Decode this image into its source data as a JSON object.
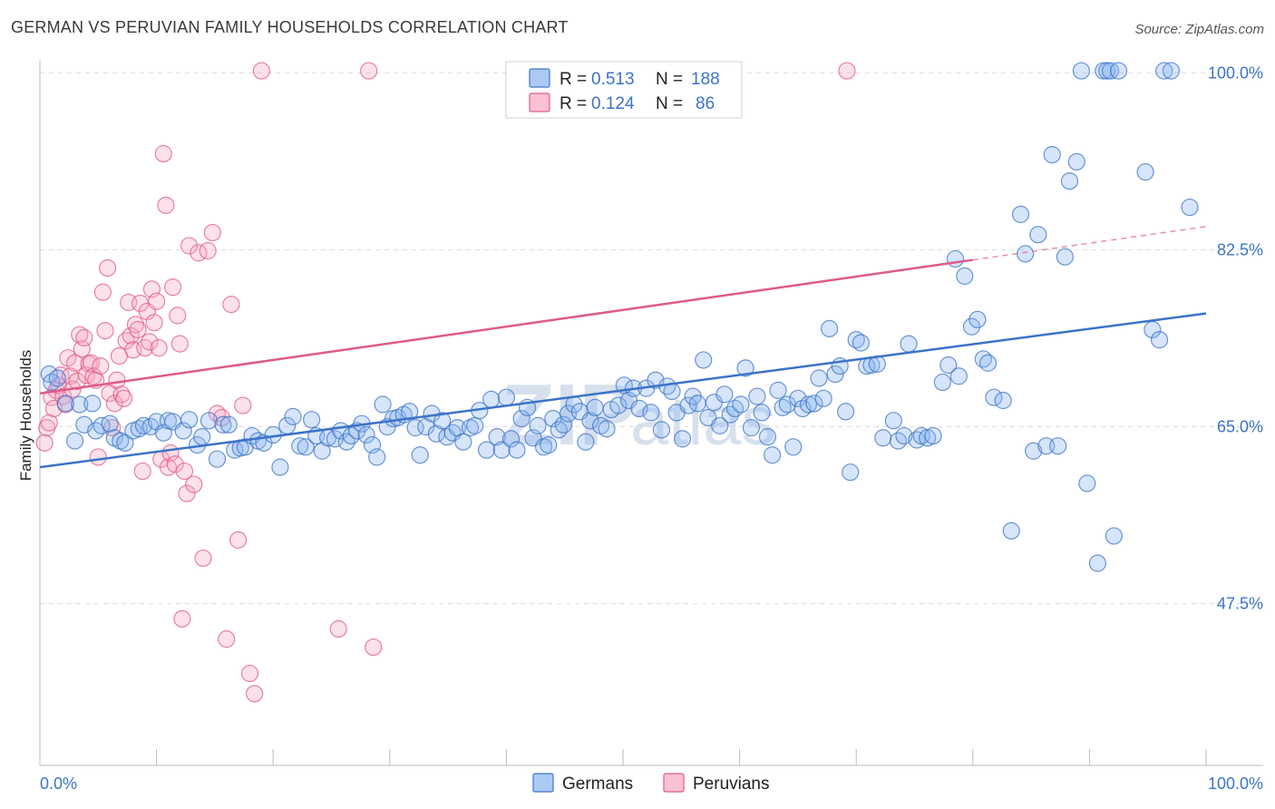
{
  "header": {
    "title": "GERMAN VS PERUVIAN FAMILY HOUSEHOLDS CORRELATION CHART",
    "source": "Source: ZipAtlas.com"
  },
  "watermark": {
    "zip": "ZIP",
    "atlas": "atlas"
  },
  "legend_top": {
    "rows": [
      {
        "r_label": "R =",
        "r_value": "0.513",
        "n_label": "N =",
        "n_value": "188",
        "color": "#8ab4f0"
      },
      {
        "r_label": "R =",
        "r_value": "0.124",
        "n_label": "N =",
        "n_value": "86",
        "color": "#f5a8c0"
      }
    ]
  },
  "legend_bottom": {
    "items": [
      {
        "label": "Germans",
        "color": "#8ab4f0"
      },
      {
        "label": "Peruvians",
        "color": "#f5a8c0"
      }
    ]
  },
  "chart_data": {
    "type": "scatter",
    "title": "GERMAN VS PERUVIAN FAMILY HOUSEHOLDS CORRELATION CHART",
    "xlabel": "",
    "ylabel": "Family Households",
    "xlim": [
      0,
      100
    ],
    "ylim": [
      31.5,
      102
    ],
    "x_tick_labels": [
      "0.0%",
      "100.0%"
    ],
    "y_ticks": [
      {
        "value": 100.0,
        "label": "100.0%"
      },
      {
        "value": 82.5,
        "label": "82.5%"
      },
      {
        "value": 65.0,
        "label": "65.0%"
      },
      {
        "value": 47.5,
        "label": "47.5%"
      }
    ],
    "grid": "horizontal dashed",
    "legend_placement": "top-center",
    "colors": {
      "germans": "#3b73c8",
      "peruvians": "#e05a8a",
      "germans_fill": "#8ab4f0",
      "peruvians_fill": "#f5a8c0"
    },
    "series": [
      {
        "name": "Germans",
        "trend": {
          "x": [
            0,
            100
          ],
          "y": [
            61.0,
            76.2
          ]
        },
        "points": [
          [
            0.8,
            70.2
          ],
          [
            1.0,
            69.4
          ],
          [
            1.5,
            69.8
          ],
          [
            2.2,
            67.3
          ],
          [
            3.0,
            63.6
          ],
          [
            3.4,
            67.2
          ],
          [
            3.8,
            65.2
          ],
          [
            4.5,
            67.3
          ],
          [
            4.8,
            64.6
          ],
          [
            5.3,
            65.1
          ],
          [
            6.0,
            65.3
          ],
          [
            6.4,
            63.9
          ],
          [
            6.9,
            63.6
          ],
          [
            7.3,
            63.4
          ],
          [
            8.0,
            64.6
          ],
          [
            8.5,
            64.8
          ],
          [
            8.9,
            65.1
          ],
          [
            9.5,
            65.0
          ],
          [
            10.0,
            65.5
          ],
          [
            10.6,
            64.4
          ],
          [
            11.0,
            65.6
          ],
          [
            11.4,
            65.5
          ],
          [
            12.3,
            64.6
          ],
          [
            12.8,
            65.7
          ],
          [
            13.5,
            63.2
          ],
          [
            13.9,
            64.0
          ],
          [
            14.5,
            65.6
          ],
          [
            15.2,
            61.8
          ],
          [
            15.7,
            65.2
          ],
          [
            16.2,
            65.2
          ],
          [
            16.7,
            62.7
          ],
          [
            17.2,
            62.9
          ],
          [
            17.6,
            63.0
          ],
          [
            18.2,
            64.1
          ],
          [
            18.7,
            63.6
          ],
          [
            19.2,
            63.4
          ],
          [
            20.0,
            64.2
          ],
          [
            20.6,
            61.0
          ],
          [
            21.2,
            65.1
          ],
          [
            21.7,
            66.0
          ],
          [
            22.3,
            63.1
          ],
          [
            22.8,
            63.0
          ],
          [
            23.3,
            65.7
          ],
          [
            23.7,
            64.1
          ],
          [
            24.2,
            62.6
          ],
          [
            24.7,
            63.9
          ],
          [
            25.3,
            63.8
          ],
          [
            25.8,
            64.6
          ],
          [
            26.3,
            63.5
          ],
          [
            26.7,
            64.1
          ],
          [
            27.2,
            64.6
          ],
          [
            27.6,
            65.3
          ],
          [
            28.0,
            64.2
          ],
          [
            28.5,
            63.2
          ],
          [
            28.9,
            62.0
          ],
          [
            29.4,
            67.2
          ],
          [
            29.8,
            65.0
          ],
          [
            30.3,
            65.8
          ],
          [
            30.7,
            65.9
          ],
          [
            31.2,
            66.2
          ],
          [
            31.7,
            66.5
          ],
          [
            32.2,
            64.9
          ],
          [
            32.6,
            62.2
          ],
          [
            33.1,
            65.0
          ],
          [
            33.6,
            66.3
          ],
          [
            34.0,
            64.3
          ],
          [
            34.5,
            65.6
          ],
          [
            34.9,
            64.0
          ],
          [
            35.4,
            64.4
          ],
          [
            35.8,
            64.9
          ],
          [
            36.3,
            63.5
          ],
          [
            36.9,
            64.9
          ],
          [
            37.3,
            65.1
          ],
          [
            37.7,
            66.6
          ],
          [
            38.3,
            62.7
          ],
          [
            38.7,
            67.7
          ],
          [
            39.2,
            64.0
          ],
          [
            39.6,
            62.7
          ],
          [
            40.0,
            67.9
          ],
          [
            40.4,
            63.8
          ],
          [
            40.9,
            62.7
          ],
          [
            41.3,
            65.8
          ],
          [
            41.8,
            66.9
          ],
          [
            42.3,
            63.9
          ],
          [
            42.7,
            65.1
          ],
          [
            43.2,
            63.0
          ],
          [
            43.6,
            63.2
          ],
          [
            44.0,
            65.8
          ],
          [
            44.5,
            64.7
          ],
          [
            44.9,
            65.2
          ],
          [
            45.3,
            66.3
          ],
          [
            45.8,
            67.2
          ],
          [
            46.3,
            66.5
          ],
          [
            46.8,
            63.5
          ],
          [
            47.2,
            65.6
          ],
          [
            47.6,
            66.9
          ],
          [
            48.1,
            65.1
          ],
          [
            48.6,
            64.8
          ],
          [
            49.0,
            66.7
          ],
          [
            49.6,
            67.1
          ],
          [
            50.1,
            69.1
          ],
          [
            50.5,
            67.6
          ],
          [
            50.9,
            68.8
          ],
          [
            51.4,
            66.8
          ],
          [
            52.0,
            68.8
          ],
          [
            52.4,
            66.4
          ],
          [
            52.8,
            69.6
          ],
          [
            53.3,
            64.7
          ],
          [
            53.8,
            69.0
          ],
          [
            54.2,
            68.5
          ],
          [
            54.6,
            66.4
          ],
          [
            55.1,
            63.8
          ],
          [
            55.6,
            67.1
          ],
          [
            56.0,
            68.0
          ],
          [
            56.4,
            67.3
          ],
          [
            56.9,
            71.6
          ],
          [
            57.3,
            65.9
          ],
          [
            57.8,
            67.4
          ],
          [
            58.3,
            65.1
          ],
          [
            58.7,
            68.2
          ],
          [
            59.2,
            66.2
          ],
          [
            59.6,
            66.8
          ],
          [
            60.1,
            67.2
          ],
          [
            60.5,
            70.8
          ],
          [
            61.0,
            64.9
          ],
          [
            61.5,
            68.0
          ],
          [
            61.9,
            66.4
          ],
          [
            62.4,
            64.0
          ],
          [
            62.8,
            62.2
          ],
          [
            63.3,
            68.6
          ],
          [
            63.7,
            66.9
          ],
          [
            64.1,
            67.2
          ],
          [
            64.6,
            63.0
          ],
          [
            65.0,
            67.8
          ],
          [
            65.4,
            66.8
          ],
          [
            65.9,
            67.2
          ],
          [
            66.4,
            67.3
          ],
          [
            66.8,
            69.8
          ],
          [
            67.2,
            67.8
          ],
          [
            67.7,
            74.7
          ],
          [
            68.2,
            70.2
          ],
          [
            68.6,
            71.0
          ],
          [
            69.1,
            66.5
          ],
          [
            69.5,
            60.5
          ],
          [
            70.0,
            73.6
          ],
          [
            70.4,
            73.3
          ],
          [
            70.9,
            71.0
          ],
          [
            71.3,
            71.1
          ],
          [
            71.8,
            71.2
          ],
          [
            72.3,
            63.9
          ],
          [
            73.2,
            65.6
          ],
          [
            73.6,
            63.6
          ],
          [
            74.1,
            64.1
          ],
          [
            74.5,
            73.2
          ],
          [
            75.2,
            63.7
          ],
          [
            75.6,
            64.1
          ],
          [
            76.1,
            63.9
          ],
          [
            76.6,
            64.1
          ],
          [
            77.4,
            69.4
          ],
          [
            77.9,
            71.1
          ],
          [
            78.5,
            81.6
          ],
          [
            78.8,
            70.0
          ],
          [
            79.3,
            79.9
          ],
          [
            79.9,
            74.9
          ],
          [
            80.4,
            75.6
          ],
          [
            80.9,
            71.7
          ],
          [
            81.3,
            71.3
          ],
          [
            81.8,
            67.9
          ],
          [
            82.6,
            67.6
          ],
          [
            83.3,
            54.7
          ],
          [
            84.1,
            86.0
          ],
          [
            84.5,
            82.1
          ],
          [
            85.2,
            62.6
          ],
          [
            85.6,
            84.0
          ],
          [
            86.3,
            63.1
          ],
          [
            86.8,
            91.9
          ],
          [
            87.3,
            63.1
          ],
          [
            87.9,
            81.8
          ],
          [
            88.3,
            89.3
          ],
          [
            88.9,
            91.2
          ],
          [
            89.3,
            100.2
          ],
          [
            89.8,
            59.4
          ],
          [
            90.7,
            51.5
          ],
          [
            91.2,
            100.2
          ],
          [
            91.5,
            100.2
          ],
          [
            91.8,
            100.2
          ],
          [
            92.1,
            54.2
          ],
          [
            92.5,
            100.2
          ],
          [
            94.8,
            90.2
          ],
          [
            95.4,
            74.6
          ],
          [
            96.0,
            73.6
          ],
          [
            96.4,
            100.2
          ],
          [
            97.0,
            100.2
          ],
          [
            98.6,
            86.7
          ]
        ]
      },
      {
        "name": "Peruvians",
        "trend": {
          "x": [
            0,
            80
          ],
          "y": [
            68.3,
            81.5
          ],
          "dashed_extension": {
            "x": [
              80,
              100
            ],
            "y": [
              81.5,
              84.8
            ]
          }
        },
        "points": [
          [
            0.4,
            63.4
          ],
          [
            0.6,
            64.9
          ],
          [
            0.8,
            65.4
          ],
          [
            1.0,
            67.9
          ],
          [
            1.2,
            66.8
          ],
          [
            1.4,
            68.6
          ],
          [
            1.6,
            69.1
          ],
          [
            1.8,
            70.1
          ],
          [
            2.0,
            68.0
          ],
          [
            2.2,
            67.2
          ],
          [
            2.4,
            71.8
          ],
          [
            2.6,
            70.0
          ],
          [
            2.8,
            68.7
          ],
          [
            3.0,
            71.3
          ],
          [
            3.2,
            69.5
          ],
          [
            3.4,
            74.1
          ],
          [
            3.6,
            72.7
          ],
          [
            3.8,
            73.8
          ],
          [
            4.0,
            70.1
          ],
          [
            4.2,
            71.2
          ],
          [
            4.4,
            71.3
          ],
          [
            4.6,
            70.0
          ],
          [
            4.8,
            69.6
          ],
          [
            5.0,
            62.0
          ],
          [
            5.2,
            71.0
          ],
          [
            5.4,
            78.3
          ],
          [
            5.6,
            74.5
          ],
          [
            5.8,
            80.7
          ],
          [
            6.0,
            68.3
          ],
          [
            6.2,
            64.9
          ],
          [
            6.4,
            67.3
          ],
          [
            6.6,
            69.6
          ],
          [
            6.8,
            72.0
          ],
          [
            7.0,
            68.2
          ],
          [
            7.2,
            67.8
          ],
          [
            7.4,
            73.5
          ],
          [
            7.6,
            77.3
          ],
          [
            7.8,
            74.0
          ],
          [
            8.0,
            72.6
          ],
          [
            8.2,
            75.1
          ],
          [
            8.4,
            74.6
          ],
          [
            8.6,
            77.2
          ],
          [
            8.8,
            60.6
          ],
          [
            9.0,
            72.8
          ],
          [
            9.2,
            76.4
          ],
          [
            9.4,
            73.4
          ],
          [
            9.6,
            78.6
          ],
          [
            9.8,
            75.3
          ],
          [
            10.0,
            77.4
          ],
          [
            10.2,
            72.8
          ],
          [
            10.4,
            61.8
          ],
          [
            10.6,
            92.0
          ],
          [
            10.8,
            86.9
          ],
          [
            11.0,
            61.0
          ],
          [
            11.2,
            62.4
          ],
          [
            11.4,
            78.8
          ],
          [
            11.6,
            61.3
          ],
          [
            11.8,
            76.0
          ],
          [
            12.0,
            73.2
          ],
          [
            12.2,
            46.0
          ],
          [
            12.4,
            60.6
          ],
          [
            12.6,
            58.4
          ],
          [
            12.8,
            82.9
          ],
          [
            13.2,
            59.3
          ],
          [
            13.6,
            82.2
          ],
          [
            14.0,
            52.0
          ],
          [
            14.4,
            82.4
          ],
          [
            14.8,
            84.2
          ],
          [
            15.2,
            66.3
          ],
          [
            15.6,
            65.9
          ],
          [
            16.0,
            44.0
          ],
          [
            16.4,
            77.1
          ],
          [
            17.0,
            53.8
          ],
          [
            17.4,
            67.1
          ],
          [
            18.0,
            40.6
          ],
          [
            18.4,
            38.6
          ],
          [
            19.0,
            100.2
          ],
          [
            25.6,
            45.0
          ],
          [
            28.2,
            100.2
          ],
          [
            28.6,
            43.2
          ],
          [
            69.2,
            100.2
          ]
        ]
      }
    ]
  }
}
